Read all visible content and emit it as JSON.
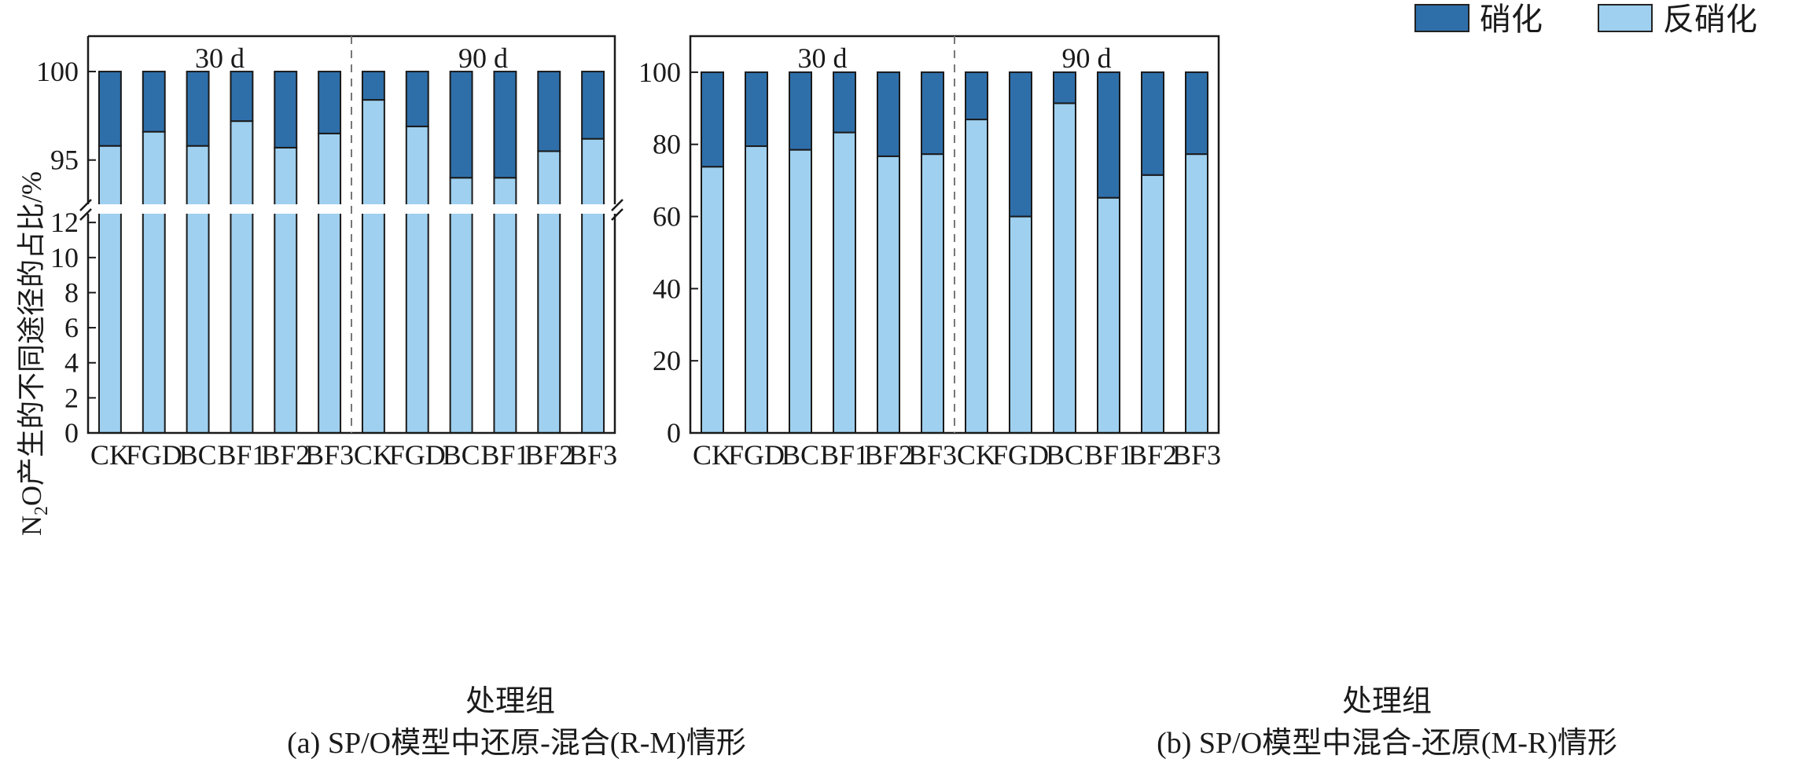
{
  "legend": {
    "items": [
      {
        "label": "硝化",
        "color": "#2e6faa"
      },
      {
        "label": "反硝化",
        "color": "#9fd0ef"
      }
    ]
  },
  "ylabel": {
    "pre": "N",
    "sub": "2",
    "post": "O产生的不同途径的占比/%"
  },
  "chart_data": [
    {
      "type": "bar",
      "stacked": true,
      "broken_axis": true,
      "caption": "(a) SP/O模型中还原-混合(R-M)情形",
      "xlabel": "处理组",
      "groups": [
        "30 d",
        "90 d"
      ],
      "categories": [
        "CK",
        "FGD",
        "BC",
        "BF1",
        "BF2",
        "BF3",
        "CK",
        "FGD",
        "BC",
        "BF1",
        "BF2",
        "BF3"
      ],
      "series": [
        {
          "name": "反硝化",
          "values": [
            95.8,
            96.6,
            95.8,
            97.2,
            95.7,
            96.5,
            98.4,
            96.9,
            94.0,
            94.0,
            95.5,
            96.2
          ]
        },
        {
          "name": "硝化",
          "values": [
            4.2,
            3.4,
            4.2,
            2.8,
            4.3,
            3.5,
            1.6,
            3.1,
            6.0,
            6.0,
            4.5,
            3.8
          ]
        }
      ],
      "lower_ylim": [
        0,
        12.5
      ],
      "lower_yticks": [
        0,
        2,
        4,
        6,
        8,
        10,
        12
      ],
      "upper_ylim": [
        92.5,
        102
      ],
      "upper_yticks": [
        95,
        100
      ]
    },
    {
      "type": "bar",
      "stacked": true,
      "caption": "(b) SP/O模型中混合-还原(M-R)情形",
      "xlabel": "处理组",
      "groups": [
        "30 d",
        "90 d"
      ],
      "categories": [
        "CK",
        "FGD",
        "BC",
        "BF1",
        "BF2",
        "BF3",
        "CK",
        "FGD",
        "BC",
        "BF1",
        "BF2",
        "BF3"
      ],
      "series": [
        {
          "name": "反硝化",
          "values": [
            73.8,
            79.5,
            78.5,
            83.3,
            76.7,
            77.3,
            86.9,
            60.0,
            91.4,
            65.2,
            71.5,
            77.3
          ]
        },
        {
          "name": "硝化",
          "values": [
            26.2,
            20.5,
            21.5,
            16.7,
            23.3,
            22.7,
            13.1,
            40.0,
            8.6,
            34.8,
            28.5,
            22.7
          ]
        }
      ],
      "ylim": [
        0,
        110
      ],
      "yticks": [
        0,
        20,
        40,
        60,
        80,
        100
      ]
    }
  ]
}
